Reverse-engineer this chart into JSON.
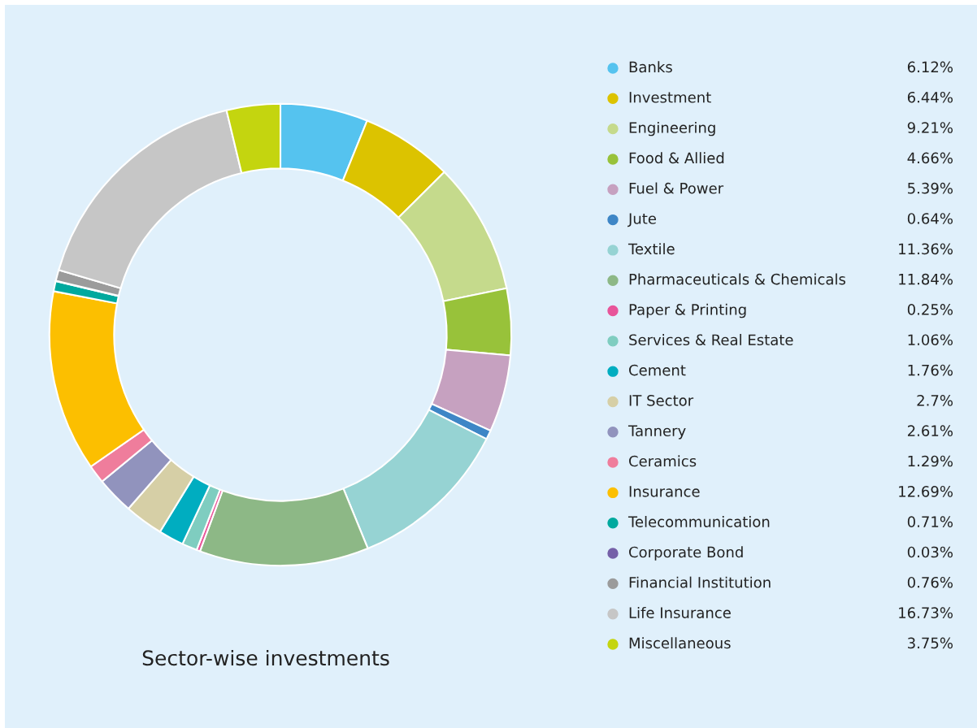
{
  "chart_data": {
    "type": "donut",
    "title": "Sector-wise investments",
    "legend": "right",
    "categories": [
      "Banks",
      "Investment",
      "Engineering",
      "Food & Allied",
      "Fuel & Power",
      "Jute",
      "Textile",
      "Pharmaceuticals & Chemicals",
      "Paper & Printing",
      "Services & Real Estate",
      "Cement",
      "IT Sector",
      "Tannery",
      "Ceramics",
      "Insurance",
      "Telecommunication",
      "Corporate Bond",
      "Financial Institution",
      "Life Insurance",
      "Miscellaneous"
    ],
    "values": [
      6.12,
      6.44,
      9.21,
      4.66,
      5.39,
      0.64,
      11.36,
      11.84,
      0.25,
      1.06,
      1.76,
      2.7,
      2.61,
      1.29,
      12.69,
      0.71,
      0.03,
      0.76,
      16.73,
      3.75
    ],
    "value_labels": [
      "6.12%",
      "6.44%",
      "9.21%",
      "4.66%",
      "5.39%",
      "0.64%",
      "11.36%",
      "11.84%",
      "0.25%",
      "1.06%",
      "1.76%",
      "2.7%",
      "2.61%",
      "1.29%",
      "12.69%",
      "0.71%",
      "0.03%",
      "0.76%",
      "16.73%",
      "3.75%"
    ],
    "colors": [
      "#55c3ef",
      "#dcc300",
      "#c5da8c",
      "#98c23a",
      "#c6a1c0",
      "#3e86c6",
      "#96d3d3",
      "#8db886",
      "#e8559a",
      "#7fcdc0",
      "#00adc0",
      "#d6cfa6",
      "#9193bd",
      "#ef7d9c",
      "#fcbf00",
      "#00a99e",
      "#7560a8",
      "#9b9b9b",
      "#c6c6c6",
      "#c4d50f"
    ]
  }
}
